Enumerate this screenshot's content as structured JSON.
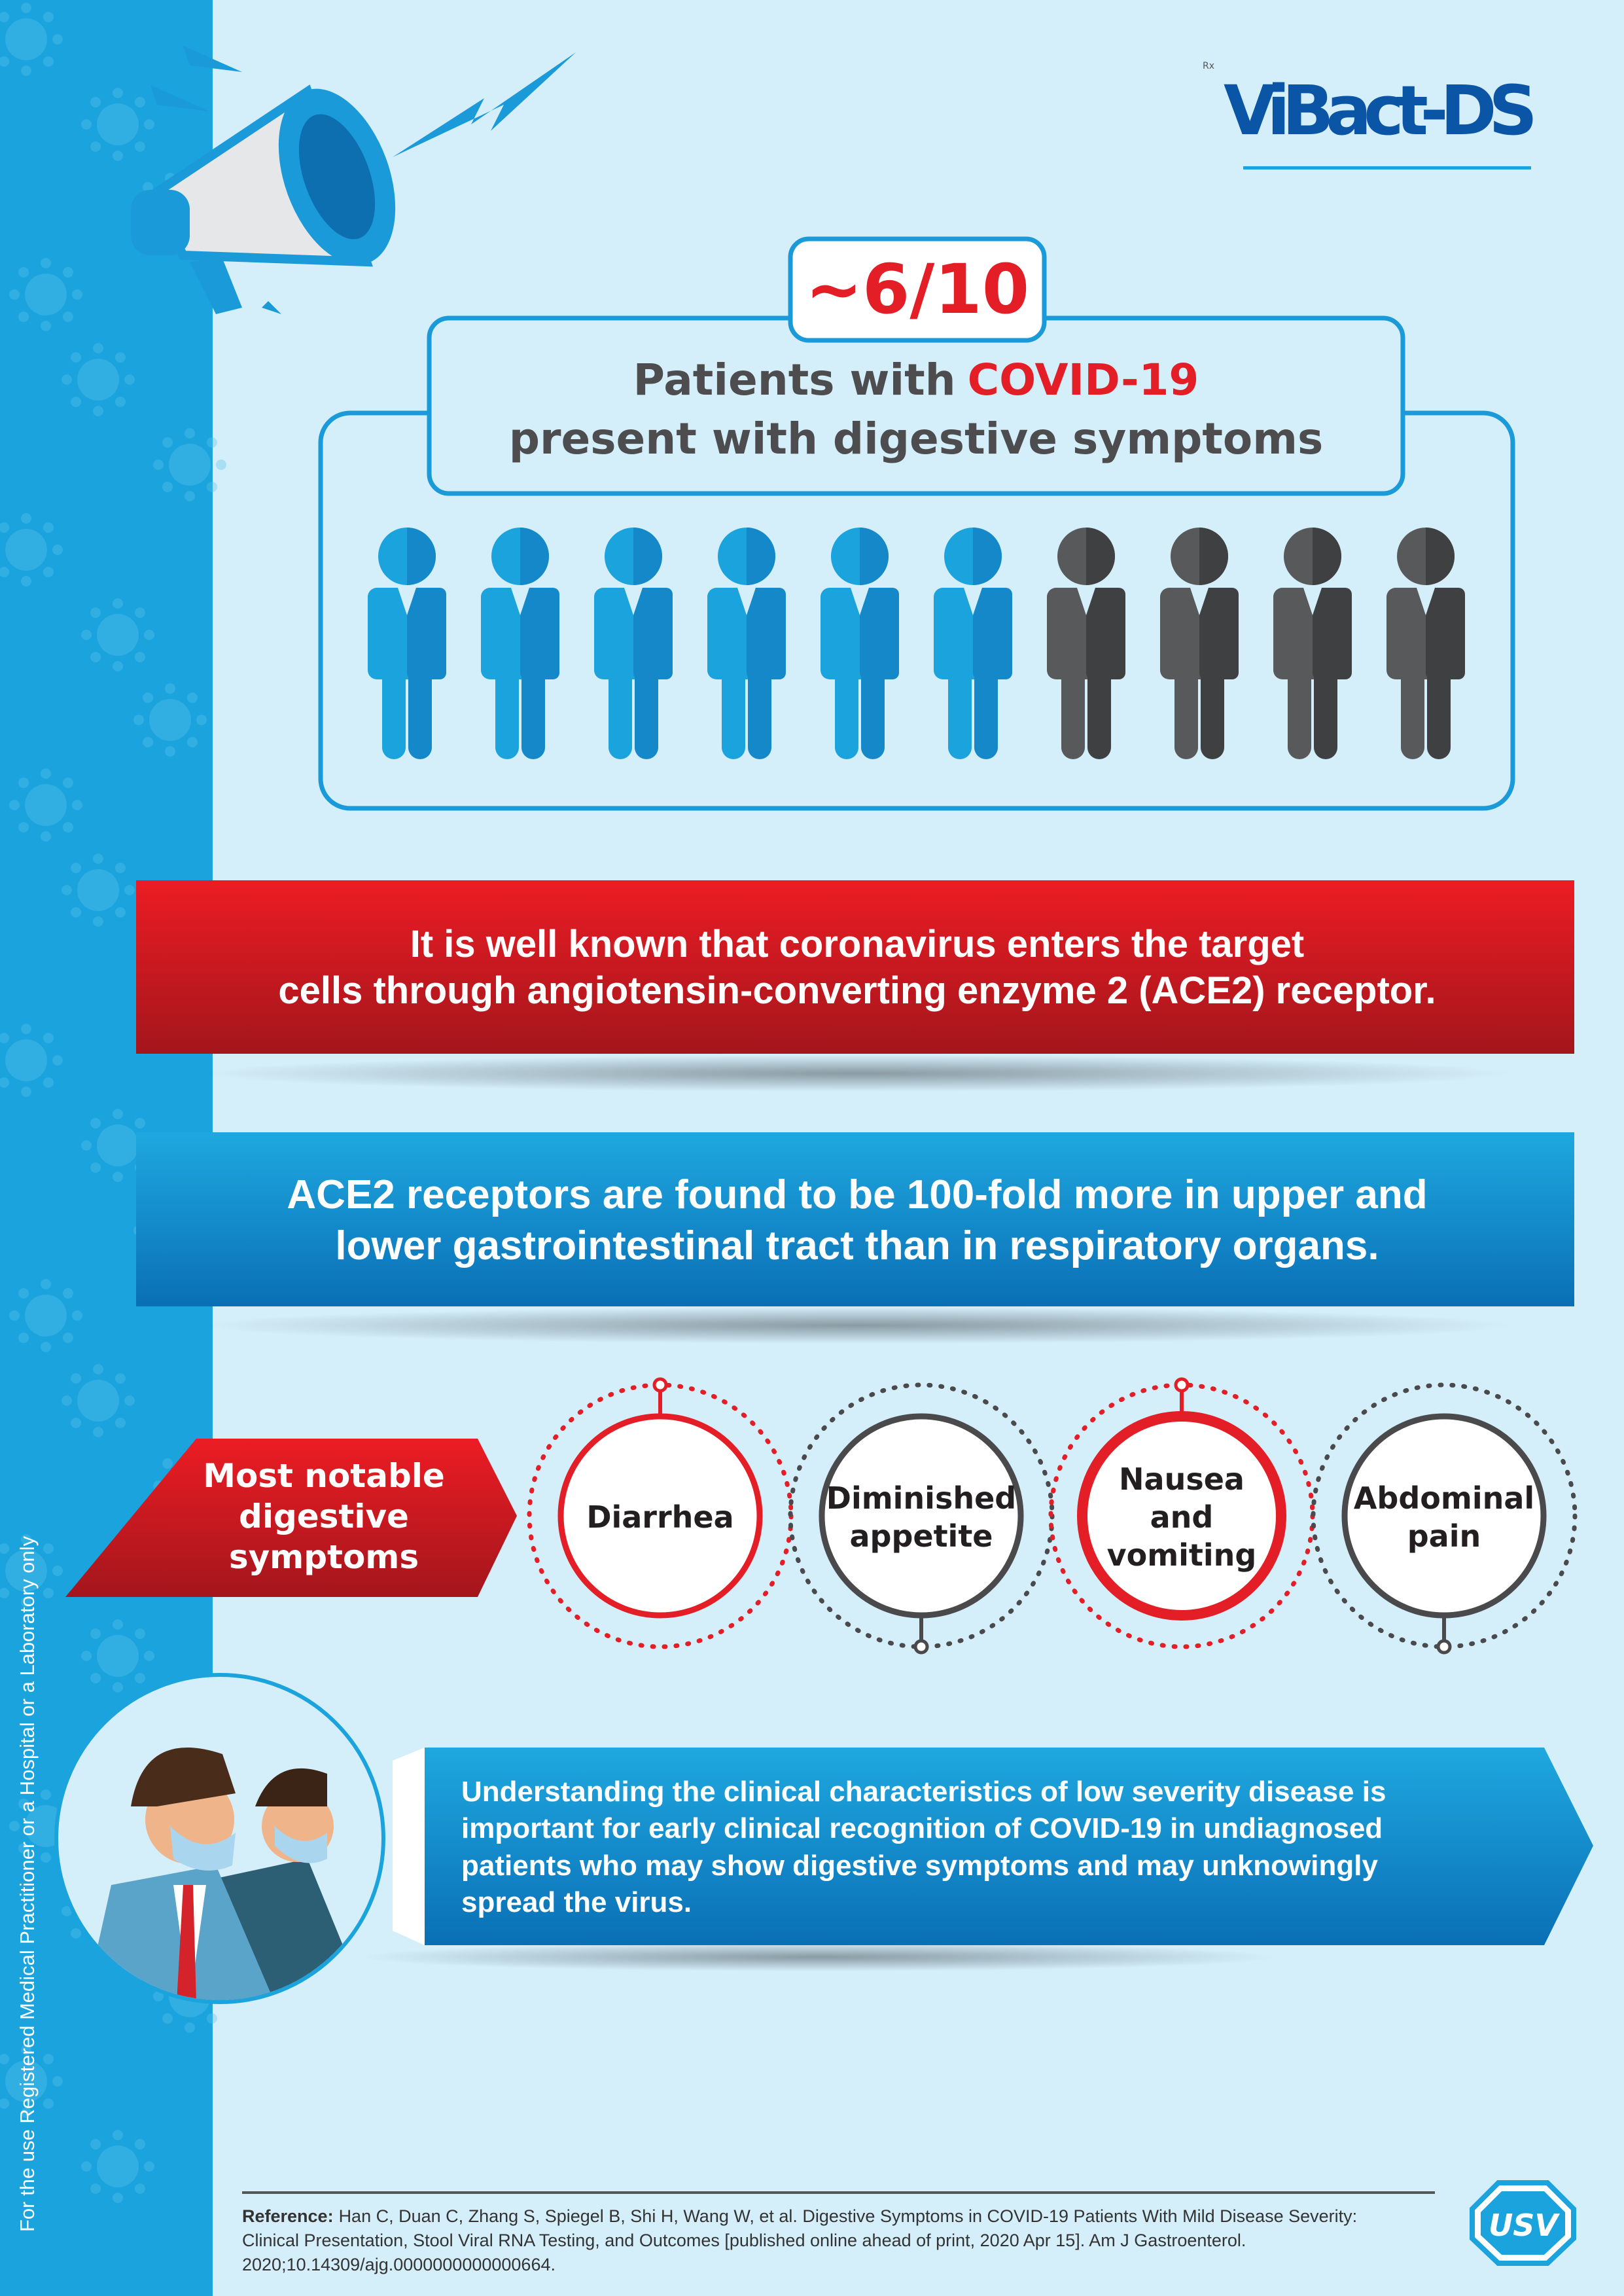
{
  "brand": {
    "logo": "ViBact-DS",
    "rx_mark": "Rx",
    "company_logo": "USV"
  },
  "side_note": "For the use Registered Medical Practitioner or a Hospital or a Laboratory only",
  "stat": {
    "ratio": "~6/10",
    "line1_prefix": "Patients with ",
    "line1_highlight": "COVID-19",
    "line2": "present with digestive symptoms",
    "people_total": 10,
    "people_highlighted": 6
  },
  "banner_red": {
    "lines": [
      "It is well known that coronavirus enters the target",
      "cells through angiotensin-converting enzyme 2 (ACE2) receptor."
    ]
  },
  "banner_blue": {
    "lines": [
      "ACE2 receptors are found to be 100-fold more in upper and",
      "lower gastrointestinal tract than in respiratory organs."
    ]
  },
  "symptoms": {
    "heading_lines": [
      "Most notable",
      "digestive",
      "symptoms"
    ],
    "items": [
      {
        "lines": [
          "Diarrhea"
        ],
        "accent": "red"
      },
      {
        "lines": [
          "Diminished",
          "appetite"
        ],
        "accent": "gray"
      },
      {
        "lines": [
          "Nausea",
          "and",
          "vomiting"
        ],
        "accent": "red"
      },
      {
        "lines": [
          "Abdominal",
          "pain"
        ],
        "accent": "gray"
      }
    ]
  },
  "conclusion": {
    "lines": [
      "Understanding the clinical characteristics of low severity disease is",
      "important for early clinical recognition of COVID-19 in undiagnosed",
      "patients who may show digestive symptoms and may unknowingly",
      "spread the virus."
    ]
  },
  "reference": {
    "label": "Reference:",
    "line1": "Han C, Duan C, Zhang S, Spiegel B, Shi H, Wang W, et al. Digestive Symptoms in COVID-19 Patients With Mild Disease Severity:",
    "line2": "Clinical Presentation, Stool Viral RNA Testing, and Outcomes [published online ahead of print, 2020 Apr 15]. Am J Gastroenterol.",
    "line3": "2020;10.14309/ajg.0000000000000664."
  },
  "colors": {
    "background": "#d4eefa",
    "blue": "#1a9ad8",
    "red": "#e41e26",
    "dark_gray": "#4a4a4c",
    "navy": "#0a55a5",
    "text_gray": "#4d4d4f"
  }
}
